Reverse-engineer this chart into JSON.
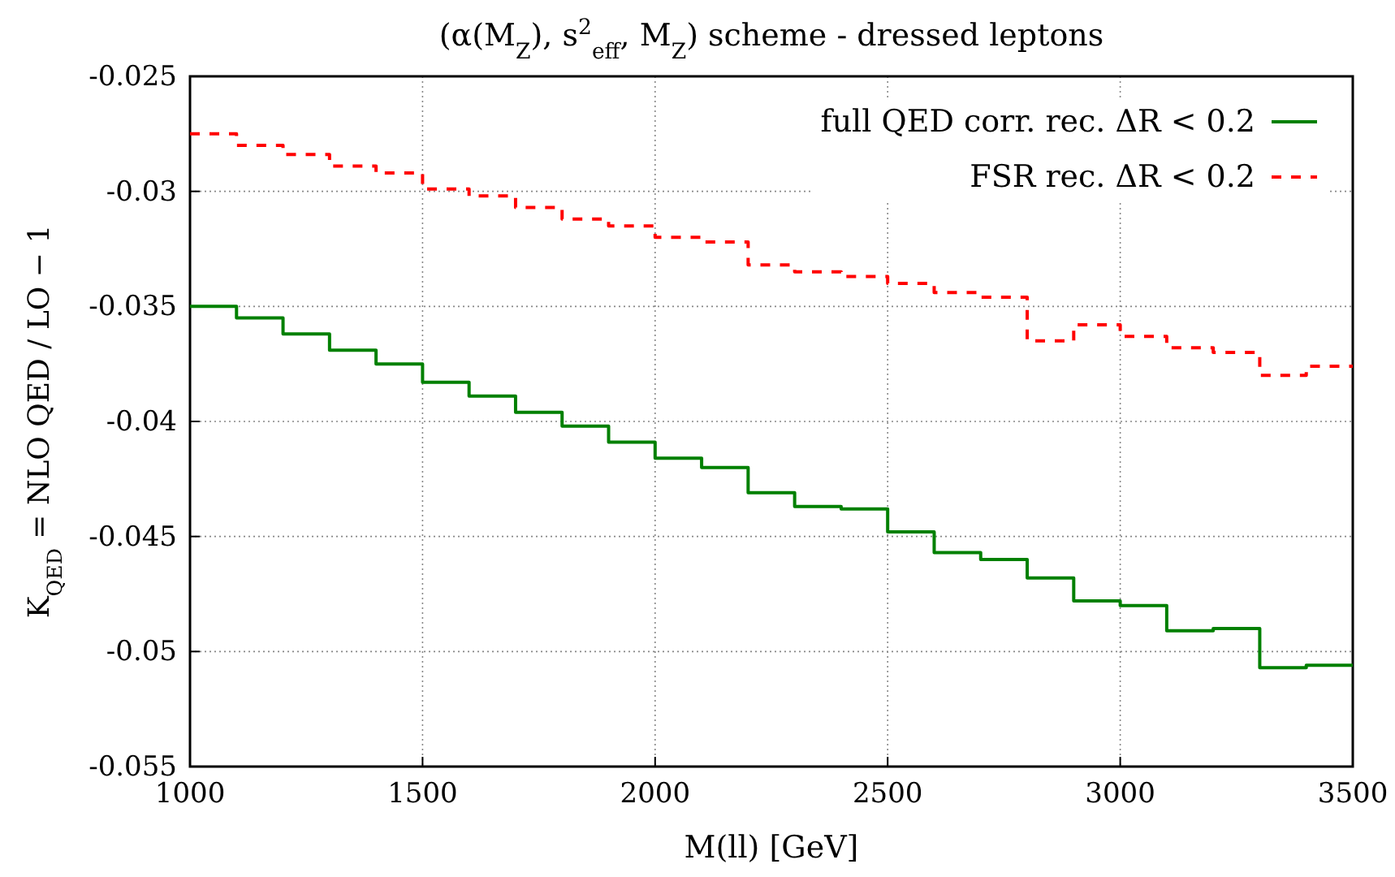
{
  "chart_data": {
    "type": "histogram",
    "title": "(α(M$_{Z}$), s$^{2}$$_{eff}$, M$_{Z}$) scheme - dressed leptons",
    "xlabel": "M(ll) [GeV]",
    "ylabel": "K$_{QED}$ = NLO QED / LO − 1",
    "bins": [
      1000,
      1100,
      1200,
      1300,
      1400,
      1500,
      1600,
      1700,
      1800,
      1900,
      2000,
      2100,
      2200,
      2300,
      2400,
      2500,
      2600,
      2700,
      2800,
      2900,
      3000,
      3100,
      3200,
      3300,
      3400,
      3500
    ],
    "series": [
      {
        "name": "full QED corr. rec. ΔR < 0.2",
        "color": "#008000",
        "line_style": "solid",
        "values": [
          -0.035,
          -0.0355,
          -0.0362,
          -0.0369,
          -0.0375,
          -0.0383,
          -0.0389,
          -0.0396,
          -0.0402,
          -0.0409,
          -0.0416,
          -0.042,
          -0.0431,
          -0.0437,
          -0.0438,
          -0.0448,
          -0.0457,
          -0.046,
          -0.0468,
          -0.0478,
          -0.048,
          -0.0491,
          -0.049,
          -0.0507,
          -0.0506
        ]
      },
      {
        "name": "FSR rec. ΔR < 0.2",
        "color": "#ff0000",
        "line_style": "dashed",
        "values": [
          -0.0275,
          -0.028,
          -0.0284,
          -0.0289,
          -0.0292,
          -0.0299,
          -0.0302,
          -0.0307,
          -0.0312,
          -0.0315,
          -0.032,
          -0.0322,
          -0.0332,
          -0.0335,
          -0.0337,
          -0.034,
          -0.0344,
          -0.0346,
          -0.0365,
          -0.0358,
          -0.0363,
          -0.0368,
          -0.037,
          -0.038,
          -0.0376
        ]
      }
    ],
    "xlim": [
      1000,
      3500
    ],
    "xticks": [
      1000,
      1500,
      2000,
      2500,
      3000,
      3500
    ],
    "ylim": [
      -0.055,
      -0.025
    ],
    "yticks": [
      -0.055,
      -0.05,
      -0.045,
      -0.04,
      -0.035,
      -0.03,
      -0.025
    ],
    "grid": true,
    "legend": "top right"
  }
}
